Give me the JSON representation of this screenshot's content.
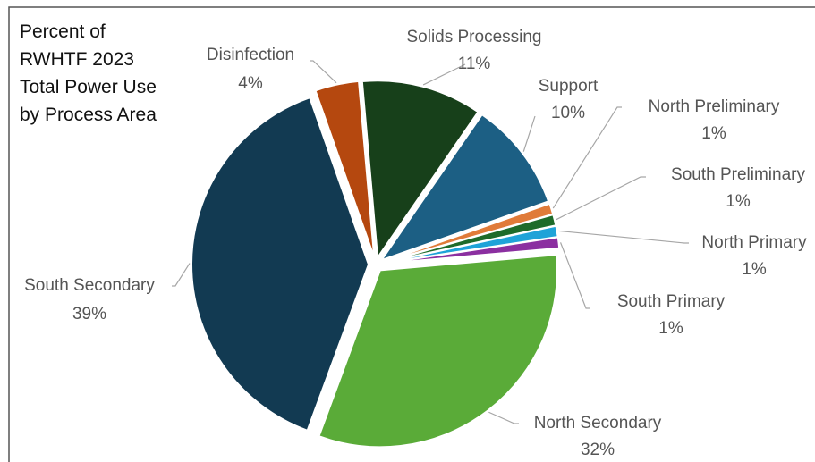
{
  "chart_data": {
    "type": "pie",
    "title": "Percent of RWHTF 2023 Total Power Use by Process Area",
    "categories": [
      "Solids Processing",
      "Support",
      "North Preliminary",
      "South Preliminary",
      "North Primary",
      "South Primary",
      "North Secondary",
      "South Secondary",
      "Disinfection"
    ],
    "values": [
      11,
      10,
      1,
      1,
      1,
      1,
      32,
      39,
      4
    ],
    "value_labels": [
      "11%",
      "10%",
      "1%",
      "1%",
      "1%",
      "1%",
      "32%",
      "39%",
      "4%"
    ],
    "colors": [
      "#17401a",
      "#1c5f84",
      "#e07b39",
      "#1e6b2a",
      "#1fa3d8",
      "#8b2fa0",
      "#5aab38",
      "#123a52",
      "#b5480f"
    ]
  }
}
